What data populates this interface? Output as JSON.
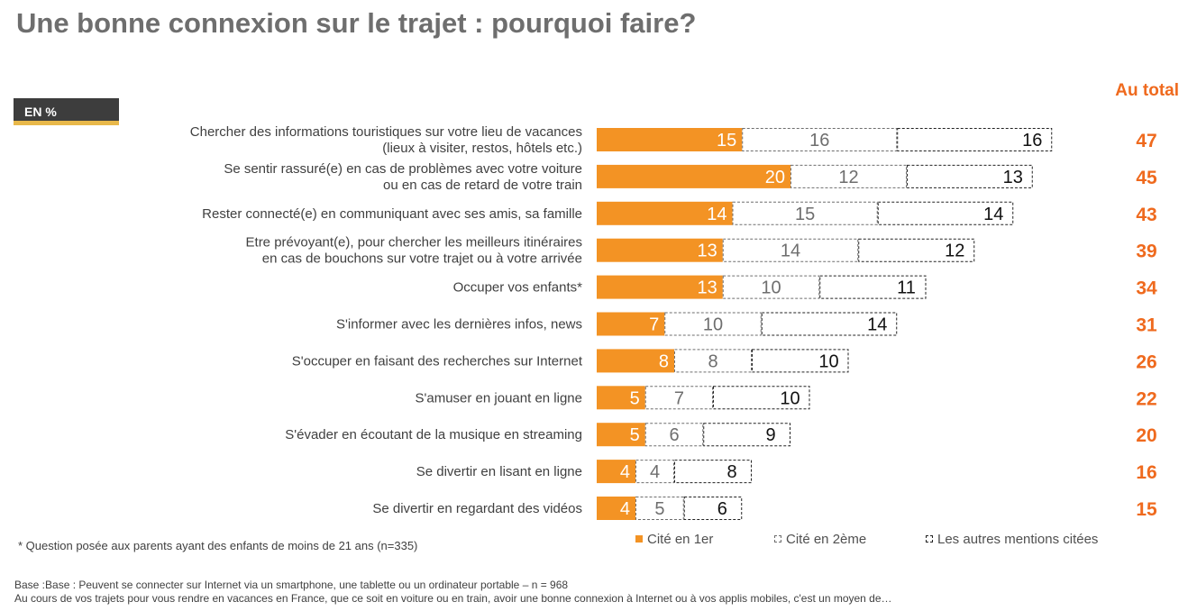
{
  "header": {
    "title": "Une bonne connexion sur le trajet : pourquoi faire?",
    "badge": "EN %",
    "total_label": "Au total"
  },
  "chart_data": {
    "type": "bar",
    "stacked": true,
    "orientation": "horizontal",
    "categories": [
      [
        "Chercher des informations touristiques sur votre lieu de vacances",
        "(lieux à visiter, restos, hôtels etc.)"
      ],
      [
        "Se sentir rassuré(e) en cas de problèmes avec votre voiture",
        "ou en cas de retard de votre train"
      ],
      [
        "Rester connecté(e) en communiquant avec ses amis, sa famille"
      ],
      [
        "Etre prévoyant(e), pour chercher les meilleurs itinéraires",
        "en cas de bouchons sur votre trajet ou à votre arrivée"
      ],
      [
        "Occuper vos enfants*"
      ],
      [
        "S'informer avec les dernières infos, news"
      ],
      [
        "S'occuper en faisant des recherches sur Internet"
      ],
      [
        "S'amuser en jouant en ligne"
      ],
      [
        "S'évader en écoutant de la musique en streaming"
      ],
      [
        "Se divertir en lisant en ligne"
      ],
      [
        "Se divertir en regardant des vidéos"
      ]
    ],
    "series": [
      {
        "name": "Cité en 1er",
        "color": "#f39324",
        "values": [
          15,
          20,
          14,
          13,
          13,
          7,
          8,
          5,
          5,
          4,
          4
        ]
      },
      {
        "name": "Cité en 2ème",
        "color": "#6e6e6e",
        "values": [
          16,
          12,
          15,
          14,
          10,
          10,
          8,
          7,
          6,
          4,
          5
        ]
      },
      {
        "name": "Les autres mentions citées",
        "color": "#222222",
        "values": [
          16,
          13,
          14,
          12,
          11,
          14,
          10,
          10,
          9,
          8,
          6
        ]
      }
    ],
    "totals": [
      47,
      45,
      43,
      39,
      34,
      31,
      26,
      22,
      20,
      16,
      15
    ],
    "total_color": "#ef6a1e",
    "legend_position": "bottom"
  },
  "footer": {
    "note": "* Question posée aux parents ayant des enfants de moins de 21 ans (n=335)",
    "base_line1": "Base :Base : Peuvent se connecter sur Internet via un smartphone, une tablette ou un ordinateur portable – n = 968",
    "base_line2": "Au cours de vos trajets pour vous rendre en vacances en France, que ce soit en voiture ou en train, avoir une bonne connexion à Internet ou à vos applis mobiles, c'est un moyen de…"
  }
}
